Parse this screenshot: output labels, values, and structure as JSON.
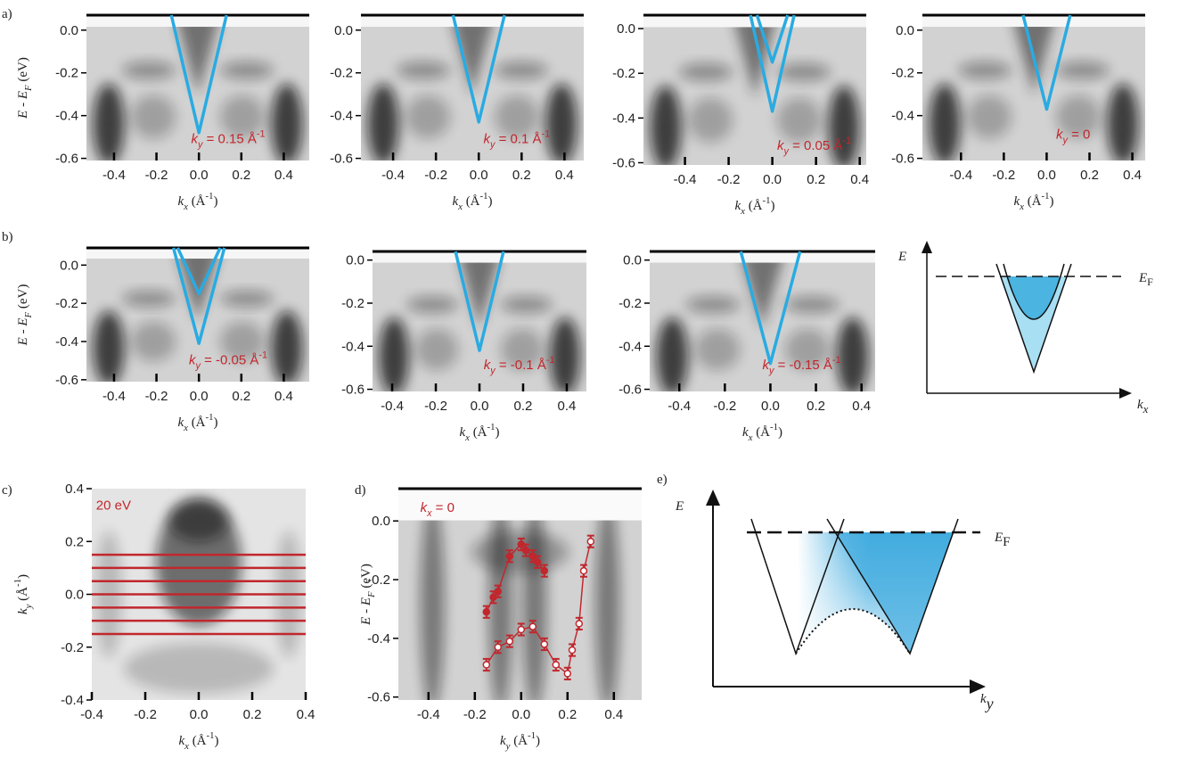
{
  "chart_data": [
    {
      "type": "image",
      "panel_label": "a)",
      "xlim": [
        -0.53,
        0.52
      ],
      "ylim": [
        -0.61,
        0.07
      ],
      "xticks": [
        -0.4,
        -0.2,
        {
          "value": 0,
          "label": "0.0"
        },
        0.2,
        0.4
      ],
      "yticks": [
        {
          "value": 0,
          "label": "0.0"
        },
        -0.2,
        -0.4,
        -0.6
      ],
      "xlabel": {
        "main": "k",
        "sub": "x",
        "rest": " (Å",
        "sup": "-1",
        "end": ")"
      },
      "ylabel": {
        "main": "E - E",
        "sub": "F",
        "rest": " (eV)"
      },
      "annotation": {
        "main": "k",
        "sub": "y",
        "rest": " = 0.15 Å",
        "sup": "-1"
      },
      "series": [
        {
          "color": "#29abe2",
          "x": [
            -0.13,
            0,
            0.13
          ],
          "values": [
            0.07,
            -0.48,
            0.07
          ]
        }
      ]
    },
    {
      "type": "image",
      "xlim": [
        -0.55,
        0.49
      ],
      "ylim": [
        -0.61,
        0.07
      ],
      "xticks": [
        -0.4,
        -0.2,
        {
          "value": 0,
          "label": "0.0"
        },
        0.2,
        0.4
      ],
      "yticks": [
        {
          "value": 0,
          "label": "0.0"
        },
        -0.2,
        -0.4,
        -0.6
      ],
      "xlabel": {
        "main": "k",
        "sub": "x",
        "rest": " (Å",
        "sup": "-1",
        "end": ")"
      },
      "annotation": {
        "main": "k",
        "sub": "y",
        "rest": " = 0.1 Å",
        "sup": "-1"
      },
      "series": [
        {
          "color": "#29abe2",
          "x": [
            -0.12,
            0,
            0.12
          ],
          "values": [
            0.07,
            -0.43,
            0.07
          ]
        }
      ]
    },
    {
      "type": "image",
      "xlim": [
        -0.59,
        0.43
      ],
      "ylim": [
        -0.61,
        0.06
      ],
      "xticks": [
        -0.4,
        -0.2,
        {
          "value": 0,
          "label": "0.0"
        },
        0.2,
        0.4
      ],
      "yticks": [
        {
          "value": 0,
          "label": "0.0"
        },
        -0.2,
        -0.4,
        -0.6
      ],
      "xlabel": {
        "main": "k",
        "sub": "x",
        "rest": " (Å",
        "sup": "-1",
        "end": ")"
      },
      "annotation": {
        "main": "k",
        "sub": "y",
        "rest": " = 0.05 Å",
        "sup": "-1"
      },
      "series": [
        {
          "color": "#29abe2",
          "x": [
            -0.1,
            0,
            0.1
          ],
          "values": [
            0.06,
            -0.37,
            0.06
          ]
        },
        {
          "color": "#29abe2",
          "x": [
            -0.07,
            0,
            0.07
          ],
          "values": [
            0.06,
            -0.15,
            0.06
          ]
        }
      ]
    },
    {
      "type": "image",
      "xlim": [
        -0.58,
        0.46
      ],
      "ylim": [
        -0.61,
        0.07
      ],
      "xticks": [
        -0.4,
        -0.2,
        {
          "value": 0,
          "label": "0.0"
        },
        0.2,
        0.4
      ],
      "yticks": [
        {
          "value": 0,
          "label": "0.0"
        },
        -0.2,
        -0.4,
        -0.6
      ],
      "xlabel": {
        "main": "k",
        "sub": "x",
        "rest": " (Å",
        "sup": "-1",
        "end": ")"
      },
      "annotation": {
        "main": "k",
        "sub": "y",
        "rest": " = 0"
      },
      "series": [
        {
          "color": "#29abe2",
          "x": [
            -0.11,
            0,
            0.11
          ],
          "values": [
            0.07,
            -0.37,
            0.07
          ]
        }
      ]
    },
    {
      "type": "image",
      "panel_label": "b)",
      "xlim": [
        -0.53,
        0.52
      ],
      "ylim": [
        -0.61,
        0.09
      ],
      "xticks": [
        -0.4,
        -0.2,
        {
          "value": 0,
          "label": "0.0"
        },
        0.2,
        0.4
      ],
      "yticks": [
        {
          "value": 0,
          "label": "0.0"
        },
        -0.2,
        -0.4,
        -0.6
      ],
      "xlabel": {
        "main": "k",
        "sub": "x",
        "rest": " (Å",
        "sup": "-1",
        "end": ")"
      },
      "ylabel": {
        "main": "E - E",
        "sub": "F",
        "rest": " (eV)"
      },
      "annotation": {
        "main": "k",
        "sub": "y",
        "rest": " = -0.05 Å",
        "sup": "-1"
      },
      "series": [
        {
          "color": "#29abe2",
          "x": [
            -0.12,
            0,
            0.12
          ],
          "values": [
            0.09,
            -0.41,
            0.09
          ]
        },
        {
          "color": "#29abe2",
          "x": [
            -0.1,
            0,
            0.1
          ],
          "values": [
            0.09,
            -0.15,
            0.09
          ]
        }
      ]
    },
    {
      "type": "image",
      "xlim": [
        -0.49,
        0.49
      ],
      "ylim": [
        -0.61,
        0.04
      ],
      "xticks": [
        -0.4,
        -0.2,
        {
          "value": 0,
          "label": "0.0"
        },
        0.2,
        0.4
      ],
      "yticks": [
        {
          "value": 0,
          "label": "0.0"
        },
        -0.2,
        -0.4,
        -0.6
      ],
      "xlabel": {
        "main": "k",
        "sub": "x",
        "rest": " (Å",
        "sup": "-1",
        "end": ")"
      },
      "annotation": {
        "main": "k",
        "sub": "y",
        "rest": " = -0.1 Å",
        "sup": "-1"
      },
      "series": [
        {
          "color": "#29abe2",
          "x": [
            -0.11,
            0,
            0.11
          ],
          "values": [
            0.04,
            -0.42,
            0.04
          ]
        }
      ]
    },
    {
      "type": "image",
      "xlim": [
        -0.53,
        0.46
      ],
      "ylim": [
        -0.61,
        0.04
      ],
      "xticks": [
        -0.4,
        -0.2,
        {
          "value": 0,
          "label": "0.0"
        },
        0.2,
        0.4
      ],
      "yticks": [
        {
          "value": 0,
          "label": "0.0"
        },
        -0.2,
        -0.4,
        -0.6
      ],
      "xlabel": {
        "main": "k",
        "sub": "x",
        "rest": " (Å",
        "sup": "-1",
        "end": ")"
      },
      "annotation": {
        "main": "k",
        "sub": "y",
        "rest": " = -0.15 Å",
        "sup": "-1"
      },
      "series": [
        {
          "color": "#29abe2",
          "x": [
            -0.13,
            0,
            0.13
          ],
          "values": [
            0.04,
            -0.48,
            0.04
          ]
        }
      ]
    },
    {
      "type": "schematic",
      "y_label": "E",
      "ef_label": {
        "main": "E",
        "sub": "F"
      },
      "x_label": {
        "main": "k",
        "sub": "x"
      }
    },
    {
      "type": "image",
      "panel_label": "c)",
      "xlim": [
        -0.4,
        0.4
      ],
      "ylim": [
        -0.4,
        0.4
      ],
      "xticks": [
        -0.4,
        -0.2,
        {
          "value": 0,
          "label": "0.0"
        },
        0.2,
        0.4
      ],
      "yticks": [
        0.4,
        0.2,
        {
          "value": 0,
          "label": "0.0"
        },
        -0.2,
        -0.4
      ],
      "xlabel": {
        "main": "k",
        "sub": "x",
        "rest": " (Å",
        "sup": "-1",
        "end": ")"
      },
      "ylabel": {
        "main": "k",
        "sub": "y",
        "rest": " (Å",
        "sup": "-1",
        "end": ")"
      },
      "annotation": "20 eV",
      "hlines": [
        0.15,
        0.1,
        0.05,
        0,
        -0.05,
        -0.1,
        -0.15
      ],
      "hline_color": "#c1272d"
    },
    {
      "type": "image",
      "panel_label": "d)",
      "xlim": [
        -0.53,
        0.52
      ],
      "ylim": [
        -0.61,
        0.11
      ],
      "xticks": [
        -0.4,
        -0.2,
        {
          "value": 0,
          "label": "0.0"
        },
        0.2,
        0.4
      ],
      "yticks": [
        {
          "value": 0,
          "label": "0.0"
        },
        -0.2,
        -0.4,
        -0.6
      ],
      "xlabel": {
        "main": "k",
        "sub": "y",
        "rest": " (Å",
        "sup": "-1",
        "end": ")"
      },
      "ylabel": {
        "main": "E - E",
        "sub": "F",
        "rest": " (eV)"
      },
      "annotation": {
        "main": "k",
        "sub": "x",
        "rest": " = 0"
      },
      "series": [
        {
          "color": "#c1272d",
          "marker": "filled",
          "x": [
            -0.15,
            -0.12,
            -0.1,
            -0.05,
            0.0,
            0.02,
            0.05,
            0.07,
            0.1
          ],
          "values": [
            -0.31,
            -0.26,
            -0.24,
            -0.12,
            -0.08,
            -0.1,
            -0.12,
            -0.14,
            -0.17
          ],
          "errors": [
            0.02,
            0.02,
            0.02,
            0.02,
            0.02,
            0.02,
            0.02,
            0.02,
            0.02
          ]
        },
        {
          "color": "#c1272d",
          "marker": "open",
          "x": [
            -0.15,
            -0.1,
            -0.05,
            0.0,
            0.05,
            0.1,
            0.15,
            0.2,
            0.22,
            0.25,
            0.27,
            0.3
          ],
          "values": [
            -0.49,
            -0.43,
            -0.41,
            -0.37,
            -0.36,
            -0.42,
            -0.49,
            -0.52,
            -0.44,
            -0.35,
            -0.17,
            -0.07
          ],
          "errors": [
            0.02,
            0.02,
            0.02,
            0.02,
            0.02,
            0.02,
            0.02,
            0.02,
            0.02,
            0.02,
            0.02,
            0.02
          ]
        }
      ]
    },
    {
      "type": "schematic",
      "panel_label": "e)",
      "y_label": "E",
      "ef_label": {
        "main": "E",
        "sub": "F"
      },
      "x_label": {
        "main": "k",
        "sub": "y"
      }
    }
  ]
}
